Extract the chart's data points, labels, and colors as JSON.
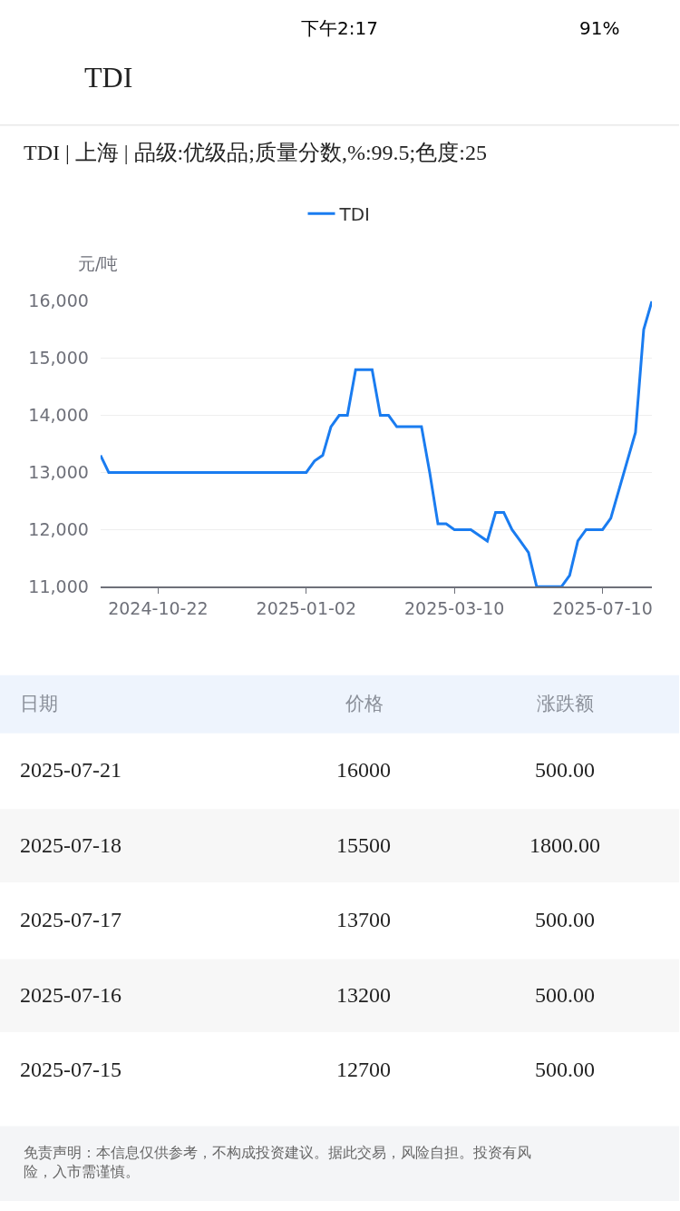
{
  "chart_data": {
    "type": "line",
    "title": "TDI",
    "subtitle": "TDI | 上海 | 品级:优级品;质量分数,%:99.5;色度:25",
    "ylabel": "元/吨",
    "categories": [
      null,
      null,
      null,
      null,
      null,
      null,
      null,
      "2024-10-22",
      null,
      null,
      null,
      null,
      null,
      null,
      null,
      null,
      null,
      null,
      null,
      null,
      null,
      null,
      null,
      null,
      null,
      "2025-01-02",
      null,
      null,
      null,
      null,
      null,
      null,
      null,
      null,
      null,
      null,
      null,
      null,
      null,
      null,
      null,
      null,
      null,
      "2025-03-10",
      null,
      null,
      null,
      null,
      null,
      null,
      null,
      null,
      null,
      null,
      null,
      null,
      null,
      null,
      null,
      null,
      null,
      "2025-07-10",
      null,
      null,
      null,
      null,
      null,
      null
    ],
    "series": [
      {
        "name": "TDI",
        "color": "#1a7cf0",
        "values": [
          13300,
          13000,
          13000,
          13000,
          13000,
          13000,
          13000,
          13000,
          13000,
          13000,
          13000,
          13000,
          13000,
          13000,
          13000,
          13000,
          13000,
          13000,
          13000,
          13000,
          13000,
          13000,
          13000,
          13000,
          13000,
          13000,
          13200,
          13300,
          13800,
          14000,
          14000,
          14800,
          14800,
          14800,
          14000,
          14000,
          13800,
          13800,
          13800,
          13800,
          13000,
          12100,
          12100,
          12000,
          12000,
          12000,
          11900,
          11800,
          12300,
          12300,
          12000,
          11800,
          11600,
          11000,
          11000,
          11000,
          11000,
          11200,
          11800,
          12000,
          12000,
          12000,
          12200,
          12700,
          13200,
          13700,
          15500,
          16000
        ]
      }
    ],
    "ylim": [
      11000,
      16000
    ],
    "yticks": [
      {
        "value": 11000,
        "label": "11,000"
      },
      {
        "value": 12000,
        "label": "12,000"
      },
      {
        "value": 13000,
        "label": "13,000"
      },
      {
        "value": 14000,
        "label": "14,000"
      },
      {
        "value": 15000,
        "label": "15,000"
      },
      {
        "value": 16000,
        "label": "16,000"
      }
    ],
    "grid": "y",
    "legend": "top",
    "marker": "none",
    "line_style": "solid",
    "annotations": [
      "日期",
      "价格",
      "涨跌额",
      "2025-07-21",
      "16000",
      "500.00",
      "2025-07-18",
      "15500",
      "1800.00",
      "2025-07-17",
      "13700",
      "500.00",
      "2025-07-16",
      "13200",
      "500.00",
      "2025-07-15",
      "12700",
      "500.00",
      "免责声明：本信息仅供参考，不构成投资建议。据此交易，风险自担。投资有风险，入市需谨慎。",
      "下午2:17",
      "91%"
    ]
  }
}
